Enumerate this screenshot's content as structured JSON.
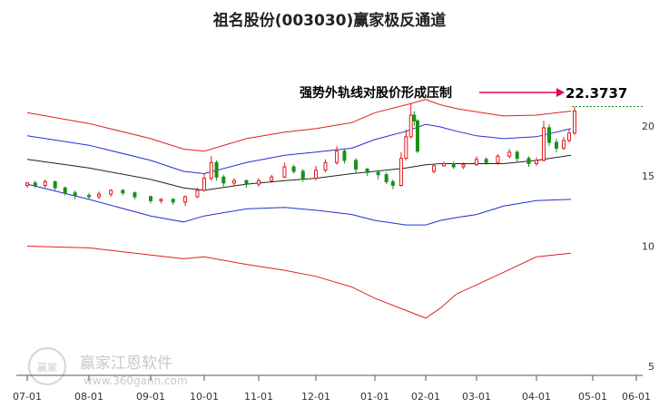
{
  "chart_data": {
    "type": "candlestick",
    "title": "祖名股份(003030)赢家极反通道",
    "ylim": [
      5,
      23
    ],
    "scale": "log",
    "y_ticks": [
      "5",
      "10",
      "15",
      "20"
    ],
    "x_ticks": [
      "07-01",
      "08-01",
      "09-01",
      "10-01",
      "11-01",
      "12-01",
      "01-01",
      "02-01",
      "03-01",
      "04-01",
      "05-01",
      "06-01"
    ],
    "annotation": {
      "text": "强势外轨线对股价形成压制",
      "value": "22.3737",
      "arrow_color": "#e0005a"
    },
    "watermark": {
      "logo_text": "赢家",
      "name": "赢家江恩软件",
      "url": "www.360gann.com"
    },
    "colors": {
      "up": "#e01b1b",
      "down": "#1a8f1a",
      "outer_band": "#e02020",
      "inner_band": "#2030d0",
      "middle_line": "#222222",
      "dashed_level": "#1a8f1a"
    },
    "series": [
      {
        "name": "outer-upper",
        "points": [
          [
            "07-01",
            21.6
          ],
          [
            "08-01",
            20.3
          ],
          [
            "09-01",
            18.6
          ],
          [
            "09-20",
            17.5
          ],
          [
            "10-01",
            17.3
          ],
          [
            "10-25",
            18.6
          ],
          [
            "11-15",
            19.3
          ],
          [
            "12-01",
            19.7
          ],
          [
            "12-20",
            20.4
          ],
          [
            "01-01",
            21.6
          ],
          [
            "01-20",
            22.6
          ],
          [
            "02-01",
            23.3
          ],
          [
            "02-10",
            22.6
          ],
          [
            "02-20",
            22.1
          ],
          [
            "03-01",
            21.7
          ],
          [
            "03-15",
            21.2
          ],
          [
            "04-01",
            21.3
          ],
          [
            "04-20",
            21.8
          ]
        ]
      },
      {
        "name": "inner-upper",
        "points": [
          [
            "07-01",
            18.9
          ],
          [
            "08-01",
            17.9
          ],
          [
            "09-01",
            16.4
          ],
          [
            "09-20",
            15.4
          ],
          [
            "10-01",
            15.2
          ],
          [
            "10-25",
            16.2
          ],
          [
            "11-15",
            16.9
          ],
          [
            "12-01",
            17.2
          ],
          [
            "12-20",
            17.6
          ],
          [
            "01-01",
            18.5
          ],
          [
            "01-20",
            19.4
          ],
          [
            "02-01",
            20.2
          ],
          [
            "02-10",
            19.9
          ],
          [
            "02-20",
            19.4
          ],
          [
            "03-01",
            18.9
          ],
          [
            "03-15",
            18.6
          ],
          [
            "04-01",
            18.8
          ],
          [
            "04-20",
            19.7
          ]
        ]
      },
      {
        "name": "middle",
        "points": [
          [
            "07-01",
            16.5
          ],
          [
            "08-01",
            15.7
          ],
          [
            "09-01",
            14.7
          ],
          [
            "09-20",
            14.0
          ],
          [
            "10-01",
            13.8
          ],
          [
            "10-25",
            14.3
          ],
          [
            "11-15",
            14.6
          ],
          [
            "12-01",
            14.8
          ],
          [
            "12-20",
            15.2
          ],
          [
            "01-01",
            15.4
          ],
          [
            "01-20",
            15.7
          ],
          [
            "02-01",
            16.0
          ],
          [
            "02-10",
            16.1
          ],
          [
            "02-20",
            16.1
          ],
          [
            "03-01",
            16.1
          ],
          [
            "03-15",
            16.1
          ],
          [
            "04-01",
            16.4
          ],
          [
            "04-20",
            16.9
          ]
        ]
      },
      {
        "name": "inner-lower",
        "points": [
          [
            "07-01",
            14.3
          ],
          [
            "08-01",
            13.1
          ],
          [
            "09-01",
            11.9
          ],
          [
            "09-20",
            11.5
          ],
          [
            "10-01",
            11.9
          ],
          [
            "10-25",
            12.4
          ],
          [
            "11-15",
            12.5
          ],
          [
            "12-01",
            12.3
          ],
          [
            "12-20",
            12.0
          ],
          [
            "01-01",
            11.6
          ],
          [
            "01-20",
            11.3
          ],
          [
            "02-01",
            11.3
          ],
          [
            "02-10",
            11.6
          ],
          [
            "02-20",
            11.8
          ],
          [
            "03-01",
            12.0
          ],
          [
            "03-15",
            12.6
          ],
          [
            "04-01",
            13.0
          ],
          [
            "04-20",
            13.1
          ]
        ]
      },
      {
        "name": "outer-lower",
        "points": [
          [
            "07-01",
            10.0
          ],
          [
            "08-01",
            9.9
          ],
          [
            "09-01",
            9.5
          ],
          [
            "09-20",
            9.3
          ],
          [
            "10-01",
            9.4
          ],
          [
            "10-25",
            9.0
          ],
          [
            "11-15",
            8.7
          ],
          [
            "12-01",
            8.4
          ],
          [
            "12-20",
            7.9
          ],
          [
            "01-01",
            7.4
          ],
          [
            "01-20",
            6.9
          ],
          [
            "02-01",
            6.6
          ],
          [
            "02-10",
            7.0
          ],
          [
            "02-20",
            7.6
          ],
          [
            "03-01",
            8.0
          ],
          [
            "03-15",
            8.6
          ],
          [
            "04-01",
            9.4
          ],
          [
            "04-20",
            9.6
          ]
        ]
      }
    ],
    "candles": [
      [
        "07-01",
        14.2,
        14.4,
        14.0,
        14.5
      ],
      [
        "07-05",
        14.4,
        14.2,
        14.0,
        14.6
      ],
      [
        "07-10",
        14.2,
        14.5,
        14.0,
        14.7
      ],
      [
        "07-15",
        14.5,
        14.0,
        13.8,
        14.6
      ],
      [
        "07-20",
        14.0,
        13.6,
        13.4,
        14.1
      ],
      [
        "07-25",
        13.6,
        13.4,
        13.1,
        13.8
      ],
      [
        "08-01",
        13.4,
        13.3,
        13.1,
        13.6
      ],
      [
        "08-06",
        13.3,
        13.5,
        13.1,
        13.7
      ],
      [
        "08-12",
        13.5,
        13.8,
        13.3,
        13.9
      ],
      [
        "08-18",
        13.8,
        13.6,
        13.4,
        13.9
      ],
      [
        "08-24",
        13.6,
        13.3,
        13.1,
        13.7
      ],
      [
        "09-01",
        13.3,
        13.0,
        12.8,
        13.4
      ],
      [
        "09-07",
        13.0,
        13.1,
        12.8,
        13.2
      ],
      [
        "09-14",
        13.1,
        12.9,
        12.7,
        13.2
      ],
      [
        "09-21",
        12.9,
        13.3,
        12.6,
        13.4
      ],
      [
        "09-28",
        13.3,
        13.8,
        13.2,
        14.0
      ],
      [
        "10-01",
        13.8,
        14.8,
        13.7,
        15.2
      ],
      [
        "10-05",
        14.8,
        16.2,
        14.6,
        16.8
      ],
      [
        "10-08",
        16.2,
        14.9,
        14.6,
        16.4
      ],
      [
        "10-12",
        14.9,
        14.4,
        14.1,
        15.1
      ],
      [
        "10-18",
        14.4,
        14.6,
        14.2,
        14.8
      ],
      [
        "10-25",
        14.6,
        14.3,
        14.0,
        14.7
      ],
      [
        "11-01",
        14.3,
        14.6,
        14.1,
        14.8
      ],
      [
        "11-08",
        14.6,
        14.9,
        14.4,
        15.1
      ],
      [
        "11-15",
        14.9,
        15.8,
        14.8,
        16.2
      ],
      [
        "11-20",
        15.8,
        15.4,
        15.2,
        16.0
      ],
      [
        "11-25",
        15.4,
        14.8,
        14.5,
        15.6
      ],
      [
        "12-01",
        14.8,
        15.5,
        14.6,
        15.9
      ],
      [
        "12-06",
        15.5,
        16.2,
        15.3,
        16.5
      ],
      [
        "12-12",
        16.2,
        17.3,
        16.0,
        17.8
      ],
      [
        "12-16",
        17.3,
        16.4,
        16.1,
        17.5
      ],
      [
        "12-22",
        16.4,
        15.6,
        15.2,
        16.6
      ],
      [
        "12-28",
        15.6,
        15.3,
        15.0,
        15.7
      ],
      [
        "01-03",
        15.3,
        15.1,
        14.7,
        15.5
      ],
      [
        "01-08",
        15.1,
        14.5,
        14.3,
        15.3
      ],
      [
        "01-12",
        14.5,
        14.2,
        13.9,
        14.7
      ],
      [
        "01-17",
        14.2,
        16.6,
        14.1,
        17.2
      ],
      [
        "01-20",
        16.6,
        18.8,
        16.4,
        19.6
      ],
      [
        "01-23",
        18.8,
        21.3,
        18.6,
        22.8
      ],
      [
        "01-25",
        21.3,
        20.6,
        20.0,
        21.8
      ],
      [
        "01-27",
        20.6,
        17.3,
        17.1,
        20.8
      ],
      [
        "02-06",
        15.4,
        15.9,
        15.2,
        16.1
      ],
      [
        "02-12",
        15.9,
        16.1,
        15.8,
        16.3
      ],
      [
        "02-18",
        16.1,
        15.8,
        15.6,
        16.3
      ],
      [
        "02-24",
        15.8,
        16.0,
        15.6,
        16.2
      ],
      [
        "03-01",
        16.0,
        16.5,
        15.9,
        16.8
      ],
      [
        "03-06",
        16.5,
        16.2,
        16.0,
        16.7
      ],
      [
        "03-12",
        16.2,
        16.8,
        16.0,
        17.0
      ],
      [
        "03-18",
        16.8,
        17.2,
        16.6,
        17.5
      ],
      [
        "03-22",
        17.2,
        16.6,
        16.3,
        17.4
      ],
      [
        "03-28",
        16.6,
        16.1,
        15.8,
        16.8
      ],
      [
        "04-01",
        16.1,
        16.4,
        15.9,
        16.7
      ],
      [
        "04-05",
        16.4,
        19.8,
        16.3,
        20.6
      ],
      [
        "04-08",
        19.8,
        18.2,
        17.8,
        20.2
      ],
      [
        "04-12",
        18.2,
        17.6,
        17.2,
        18.6
      ],
      [
        "04-16",
        17.6,
        18.4,
        17.4,
        18.8
      ],
      [
        "04-19",
        18.4,
        19.2,
        18.2,
        19.6
      ],
      [
        "04-22",
        19.2,
        21.8,
        19.0,
        22.37
      ]
    ]
  }
}
